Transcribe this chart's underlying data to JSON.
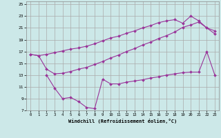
{
  "xlabel": "Windchill (Refroidissement éolien,°C)",
  "background_color": "#cce8e8",
  "grid_color": "#aaaaaa",
  "line_color": "#993399",
  "xlim_min": -0.5,
  "xlim_max": 23.5,
  "ylim_min": 7,
  "ylim_max": 25.5,
  "xticks": [
    0,
    1,
    2,
    3,
    4,
    5,
    6,
    7,
    8,
    9,
    10,
    11,
    12,
    13,
    14,
    15,
    16,
    17,
    18,
    19,
    20,
    21,
    22,
    23
  ],
  "yticks": [
    7,
    9,
    11,
    13,
    15,
    17,
    19,
    21,
    23,
    25
  ],
  "line1_x": [
    0,
    1,
    2,
    3,
    4,
    5,
    6,
    7,
    8,
    9,
    10,
    11,
    12,
    13,
    14,
    15,
    16,
    17,
    18,
    19,
    20,
    21,
    22,
    23
  ],
  "line1_y": [
    16.5,
    16.3,
    16.5,
    16.8,
    17.1,
    17.4,
    17.6,
    17.9,
    18.3,
    18.8,
    19.3,
    19.6,
    20.1,
    20.5,
    21.0,
    21.4,
    21.9,
    22.2,
    22.4,
    21.8,
    23.0,
    22.2,
    21.0,
    20.0
  ],
  "line2_x": [
    0,
    1,
    2,
    3,
    4,
    5,
    6,
    7,
    8,
    9,
    10,
    11,
    12,
    13,
    14,
    15,
    16,
    17,
    18,
    19,
    20,
    21,
    22,
    23
  ],
  "line2_y": [
    16.5,
    16.3,
    14.0,
    13.2,
    13.3,
    13.6,
    14.0,
    14.3,
    14.8,
    15.3,
    15.9,
    16.4,
    17.0,
    17.5,
    18.1,
    18.6,
    19.2,
    19.7,
    20.3,
    21.1,
    21.5,
    22.0,
    21.0,
    20.5
  ],
  "line3_x": [
    2,
    3,
    4,
    5,
    6,
    7,
    8,
    9,
    10,
    11,
    12,
    13,
    14,
    15,
    16,
    17,
    18,
    19,
    20,
    21,
    22,
    23
  ],
  "line3_y": [
    13.0,
    10.8,
    9.0,
    9.2,
    8.5,
    7.5,
    7.3,
    12.3,
    11.5,
    11.5,
    11.8,
    12.0,
    12.2,
    12.5,
    12.7,
    13.0,
    13.2,
    13.4,
    13.5,
    13.5,
    17.0,
    13.0
  ]
}
